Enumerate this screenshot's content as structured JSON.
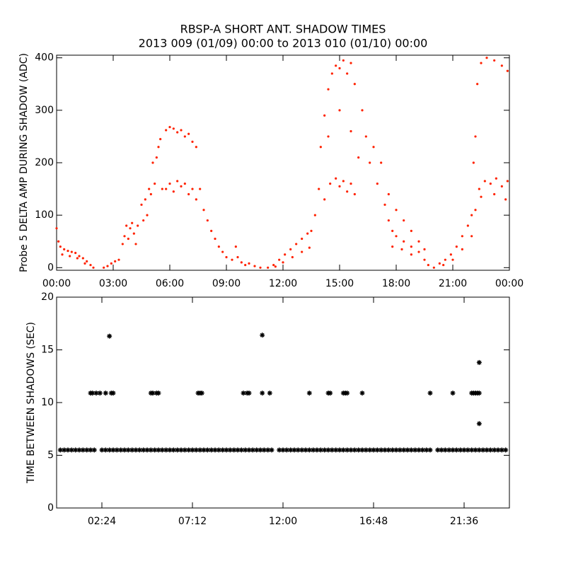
{
  "chart_data": [
    {
      "type": "scatter",
      "title": "RBSP-A SHORT ANT. SHADOW TIMES",
      "subtitle": "2013 009 (01/09) 00:00 to 2013 010 (01/10) 00:00",
      "y_label": "Probe 5 DELTA AMP DURING SHADOW (ADC)",
      "color": "#ff2200",
      "marker": "dot",
      "xlim": [
        0,
        24
      ],
      "ylim": [
        -5,
        405
      ],
      "xticks": [
        {
          "value": 0,
          "label": "00:00"
        },
        {
          "value": 3,
          "label": "03:00"
        },
        {
          "value": 6,
          "label": "06:00"
        },
        {
          "value": 9,
          "label": "09:00"
        },
        {
          "value": 12,
          "label": "12:00"
        },
        {
          "value": 15,
          "label": "15:00"
        },
        {
          "value": 18,
          "label": "18:00"
        },
        {
          "value": 21,
          "label": "21:00"
        },
        {
          "value": 24,
          "label": "00:00"
        }
      ],
      "yticks": [
        0,
        100,
        200,
        300,
        400
      ],
      "x": [
        0,
        0.1,
        0.2,
        0.4,
        0.6,
        0.8,
        1.0,
        1.2,
        1.4,
        1.6,
        1.8,
        1.95,
        0.3,
        0.7,
        1.1,
        1.5,
        2.5,
        2.7,
        2.9,
        3.1,
        3.3,
        3.5,
        3.6,
        3.7,
        3.8,
        3.9,
        4.0,
        4.1,
        4.2,
        4.3,
        4.5,
        4.6,
        4.7,
        4.8,
        4.9,
        5.0,
        5.1,
        5.2,
        5.3,
        5.4,
        5.5,
        5.6,
        5.8,
        6.0,
        6.2,
        6.4,
        6.6,
        6.8,
        7.0,
        7.2,
        7.4,
        5.8,
        6.0,
        6.2,
        6.4,
        6.6,
        6.8,
        7.0,
        7.2,
        7.4,
        7.6,
        7.8,
        8.0,
        8.2,
        8.4,
        8.6,
        8.8,
        9.0,
        9.3,
        9.5,
        9.6,
        9.8,
        10.0,
        10.2,
        10.5,
        10.8,
        11.2,
        11.5,
        11.8,
        12.1,
        12.4,
        12.7,
        13.0,
        13.3,
        13.5,
        11.6,
        12.0,
        12.5,
        13.0,
        13.4,
        13.7,
        13.9,
        14.0,
        14.2,
        14.4,
        14.6,
        14.8,
        15.0,
        15.2,
        15.4,
        15.6,
        15.8,
        14.2,
        14.5,
        14.8,
        15.0,
        15.2,
        15.4,
        15.6,
        15.8,
        14.4,
        15.0,
        15.6,
        16.0,
        16.2,
        16.4,
        16.6,
        16.8,
        17.0,
        17.2,
        17.4,
        17.6,
        17.8,
        18.0,
        18.4,
        18.8,
        19.2,
        19.5,
        19.7,
        17.6,
        18.0,
        18.4,
        18.8,
        19.2,
        19.5,
        17.8,
        18.3,
        18.8,
        20.0,
        20.3,
        20.6,
        20.9,
        21.2,
        21.5,
        21.8,
        22.0,
        22.2,
        20.5,
        21.0,
        21.5,
        22.0,
        22.4,
        22.7,
        23.0,
        23.3,
        23.6,
        23.9,
        22.5,
        23.2,
        23.8,
        22.3,
        22.5,
        22.8,
        23.2,
        23.6,
        23.9,
        22.2,
        22.1
      ],
      "values": [
        75,
        50,
        40,
        35,
        32,
        30,
        28,
        22,
        18,
        12,
        5,
        0,
        25,
        22,
        18,
        8,
        0,
        3,
        8,
        12,
        15,
        45,
        60,
        80,
        55,
        75,
        85,
        65,
        45,
        80,
        120,
        90,
        130,
        100,
        150,
        140,
        200,
        160,
        210,
        230,
        245,
        150,
        262,
        268,
        265,
        258,
        262,
        250,
        255,
        240,
        230,
        150,
        160,
        145,
        165,
        155,
        160,
        140,
        150,
        130,
        150,
        110,
        90,
        70,
        55,
        40,
        30,
        20,
        15,
        40,
        20,
        10,
        5,
        8,
        3,
        0,
        0,
        5,
        15,
        25,
        35,
        45,
        55,
        65,
        70,
        2,
        10,
        20,
        30,
        38,
        100,
        150,
        230,
        290,
        340,
        370,
        385,
        380,
        395,
        370,
        390,
        350,
        130,
        160,
        170,
        155,
        165,
        145,
        160,
        140,
        250,
        300,
        260,
        210,
        300,
        250,
        200,
        230,
        160,
        200,
        120,
        90,
        70,
        60,
        50,
        40,
        30,
        15,
        5,
        140,
        110,
        90,
        70,
        50,
        35,
        40,
        35,
        25,
        0,
        8,
        15,
        25,
        40,
        60,
        80,
        100,
        110,
        5,
        15,
        35,
        60,
        150,
        165,
        160,
        170,
        155,
        165,
        135,
        140,
        130,
        350,
        390,
        400,
        395,
        385,
        375,
        250,
        200
      ]
    },
    {
      "type": "scatter",
      "y_label": "TIME BETWEEN SHADOWS (SEC)",
      "color": "#000000",
      "marker": "asterisk",
      "xlim": [
        0,
        24
      ],
      "ylim": [
        0,
        20
      ],
      "xticks": [
        {
          "value": 2.4,
          "label": "02:24"
        },
        {
          "value": 7.2,
          "label": "07:12"
        },
        {
          "value": 12,
          "label": "12:00"
        },
        {
          "value": 16.8,
          "label": "16:48"
        },
        {
          "value": 21.6,
          "label": "21:36"
        }
      ],
      "yticks": [
        0,
        5,
        10,
        15,
        20
      ],
      "x": [
        0.2,
        0.4,
        0.6,
        0.8,
        1.0,
        1.2,
        1.4,
        1.6,
        1.8,
        2.0,
        2.4,
        2.6,
        2.8,
        3.0,
        3.2,
        3.4,
        3.6,
        3.8,
        4.0,
        4.2,
        4.4,
        4.6,
        4.8,
        5.0,
        5.2,
        5.4,
        5.6,
        5.8,
        6.0,
        6.2,
        6.4,
        6.6,
        6.8,
        7.0,
        7.2,
        7.4,
        7.6,
        7.8,
        8.0,
        8.2,
        8.4,
        8.6,
        8.8,
        9.0,
        9.2,
        9.4,
        9.6,
        9.8,
        10.0,
        10.2,
        10.4,
        10.6,
        10.8,
        11.0,
        11.2,
        11.4,
        11.8,
        12.0,
        12.2,
        12.4,
        12.6,
        12.8,
        13.0,
        13.2,
        13.4,
        13.6,
        13.8,
        14.0,
        14.2,
        14.4,
        14.6,
        14.8,
        15.0,
        15.2,
        15.4,
        15.6,
        15.8,
        16.0,
        16.2,
        16.4,
        16.6,
        16.8,
        17.0,
        17.2,
        17.4,
        17.6,
        17.8,
        18.0,
        18.2,
        18.4,
        18.6,
        18.8,
        19.0,
        19.2,
        19.4,
        19.6,
        19.8,
        20.2,
        20.4,
        20.6,
        20.8,
        21.0,
        21.2,
        21.4,
        21.6,
        21.8,
        22.0,
        22.2,
        22.4,
        22.6,
        22.8,
        23.0,
        23.2,
        23.4,
        23.6,
        23.8,
        1.8,
        1.9,
        2.1,
        2.3,
        2.6,
        2.9,
        3.0,
        5.0,
        5.1,
        5.3,
        5.4,
        7.5,
        7.6,
        7.7,
        9.9,
        10.1,
        10.2,
        10.9,
        11.3,
        13.4,
        14.4,
        14.5,
        15.2,
        15.3,
        15.4,
        16.2,
        19.8,
        21.0,
        22.0,
        22.1,
        22.2,
        22.3,
        22.4,
        2.8,
        10.9,
        22.4,
        22.4
      ],
      "values": [
        5.5,
        5.5,
        5.5,
        5.5,
        5.5,
        5.5,
        5.5,
        5.5,
        5.5,
        5.5,
        5.5,
        5.5,
        5.5,
        5.5,
        5.5,
        5.5,
        5.5,
        5.5,
        5.5,
        5.5,
        5.5,
        5.5,
        5.5,
        5.5,
        5.5,
        5.5,
        5.5,
        5.5,
        5.5,
        5.5,
        5.5,
        5.5,
        5.5,
        5.5,
        5.5,
        5.5,
        5.5,
        5.5,
        5.5,
        5.5,
        5.5,
        5.5,
        5.5,
        5.5,
        5.5,
        5.5,
        5.5,
        5.5,
        5.5,
        5.5,
        5.5,
        5.5,
        5.5,
        5.5,
        5.5,
        5.5,
        5.5,
        5.5,
        5.5,
        5.5,
        5.5,
        5.5,
        5.5,
        5.5,
        5.5,
        5.5,
        5.5,
        5.5,
        5.5,
        5.5,
        5.5,
        5.5,
        5.5,
        5.5,
        5.5,
        5.5,
        5.5,
        5.5,
        5.5,
        5.5,
        5.5,
        5.5,
        5.5,
        5.5,
        5.5,
        5.5,
        5.5,
        5.5,
        5.5,
        5.5,
        5.5,
        5.5,
        5.5,
        5.5,
        5.5,
        5.5,
        5.5,
        5.5,
        5.5,
        5.5,
        5.5,
        5.5,
        5.5,
        5.5,
        5.5,
        5.5,
        5.5,
        5.5,
        5.5,
        5.5,
        5.5,
        5.5,
        5.5,
        5.5,
        5.5,
        5.5,
        10.9,
        10.9,
        10.9,
        10.9,
        10.9,
        10.9,
        10.9,
        10.9,
        10.9,
        10.9,
        10.9,
        10.9,
        10.9,
        10.9,
        10.9,
        10.9,
        10.9,
        10.9,
        10.9,
        10.9,
        10.9,
        10.9,
        10.9,
        10.9,
        10.9,
        10.9,
        10.9,
        10.9,
        10.9,
        10.9,
        10.9,
        10.9,
        10.9,
        16.3,
        16.4,
        13.8,
        8.0
      ]
    }
  ]
}
